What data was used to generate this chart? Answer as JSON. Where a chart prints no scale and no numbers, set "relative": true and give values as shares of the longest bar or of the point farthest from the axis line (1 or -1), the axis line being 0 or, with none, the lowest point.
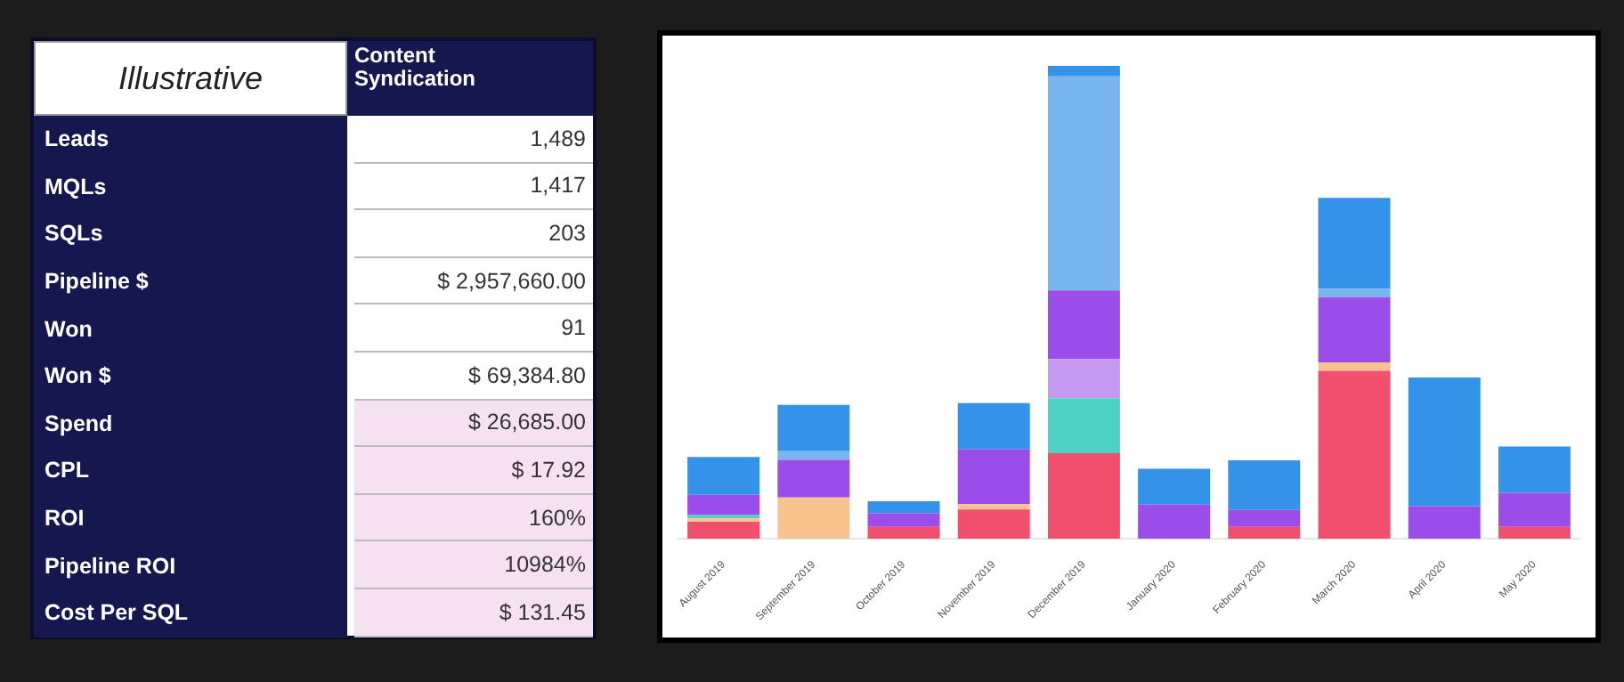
{
  "chart_data": [
    {
      "type": "other",
      "title": "Illustrative",
      "subtitle": "Content Syndication",
      "categories": [
        "Leads",
        "MQLs",
        "SQLs",
        "Pipeline $",
        "Won",
        "Won $",
        "Spend",
        "CPL",
        "ROI",
        "Pipeline ROI",
        "Cost Per SQL"
      ],
      "value_labels": [
        "1,489",
        "1,417",
        "203",
        "$ 2,957,660.00",
        "91",
        "$ 69,384.80",
        "$ 26,685.00",
        "$ 17.92",
        "160%",
        "10984%",
        "$ 131.45"
      ]
    },
    {
      "type": "bar",
      "stacked": true,
      "relative": true,
      "legend": false,
      "categories": [
        "August 2019",
        "September 2019",
        "October 2019",
        "November 2019",
        "December 2019",
        "January 2020",
        "February 2020",
        "March 2020",
        "April 2020",
        "May 2020"
      ],
      "series": [
        {
          "color": "#f0506e",
          "values": [
            0.036,
            0,
            0.025,
            0.062,
            0.181,
            0,
            0.025,
            0.355,
            0,
            0.025
          ]
        },
        {
          "color": "#f9c38f",
          "values": [
            0.007,
            0.087,
            0,
            0.011,
            0,
            0,
            0,
            0.018,
            0,
            0
          ]
        },
        {
          "color": "#4fd1c5",
          "values": [
            0.007,
            0,
            0,
            0,
            0.116,
            0,
            0,
            0,
            0,
            0
          ]
        },
        {
          "color": "#c39af0",
          "values": [
            0,
            0,
            0,
            0,
            0.083,
            0,
            0,
            0,
            0,
            0
          ]
        },
        {
          "color": "#9b4dea",
          "values": [
            0.043,
            0.08,
            0.029,
            0.116,
            0.145,
            0.072,
            0.036,
            0.138,
            0.069,
            0.072
          ]
        },
        {
          "color": "#79b6f0",
          "values": [
            0,
            0.018,
            0,
            0,
            0.453,
            0,
            0,
            0.018,
            0,
            0
          ]
        },
        {
          "color": "#3493e8",
          "values": [
            0.08,
            0.098,
            0.025,
            0.098,
            0.022,
            0.076,
            0.105,
            0.192,
            0.272,
            0.098
          ]
        }
      ]
    }
  ]
}
